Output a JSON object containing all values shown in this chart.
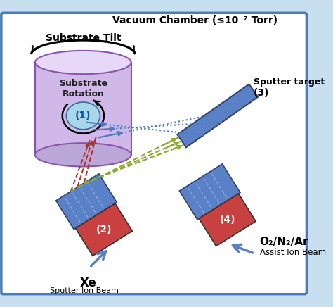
{
  "title": "Vacuum Chamber (≤10⁻⁷ Torr)",
  "subtitle_tilt": "Substrate Tilt",
  "bg_color": "#ffffff",
  "border_color": "#4a7abf",
  "cyl_face": "#d0b8e8",
  "cyl_edge": "#8855aa",
  "cyl_top": "#e8d8f8",
  "cyl_bot": "#bba8d8",
  "red_block": "#c84040",
  "blue_nozzle": "#5a80c8",
  "blue_nozzle_light": "#8aabdd",
  "sputter_target_color": "#5a80c8",
  "dot_blue": "#4a7abf",
  "dash_green": "#88aa30",
  "dash_red": "#aa3030",
  "arrow_blue": "#5a80c8",
  "label1": "(1)",
  "label2": "(2)",
  "label3": "(3)",
  "label4": "(4)",
  "xe_label": "Xe",
  "sputter_beam_label": "Sputter Ion Beam",
  "sputter_target_label": "Sputter target",
  "o2_label": "O₂/N₂/Ar",
  "assist_label": "Assist Ion Beam",
  "substrate_rotation": "Substrate\nRotation",
  "inner_circle_color": "#a8d8e8",
  "inner_circle_edge": "#3070a0"
}
